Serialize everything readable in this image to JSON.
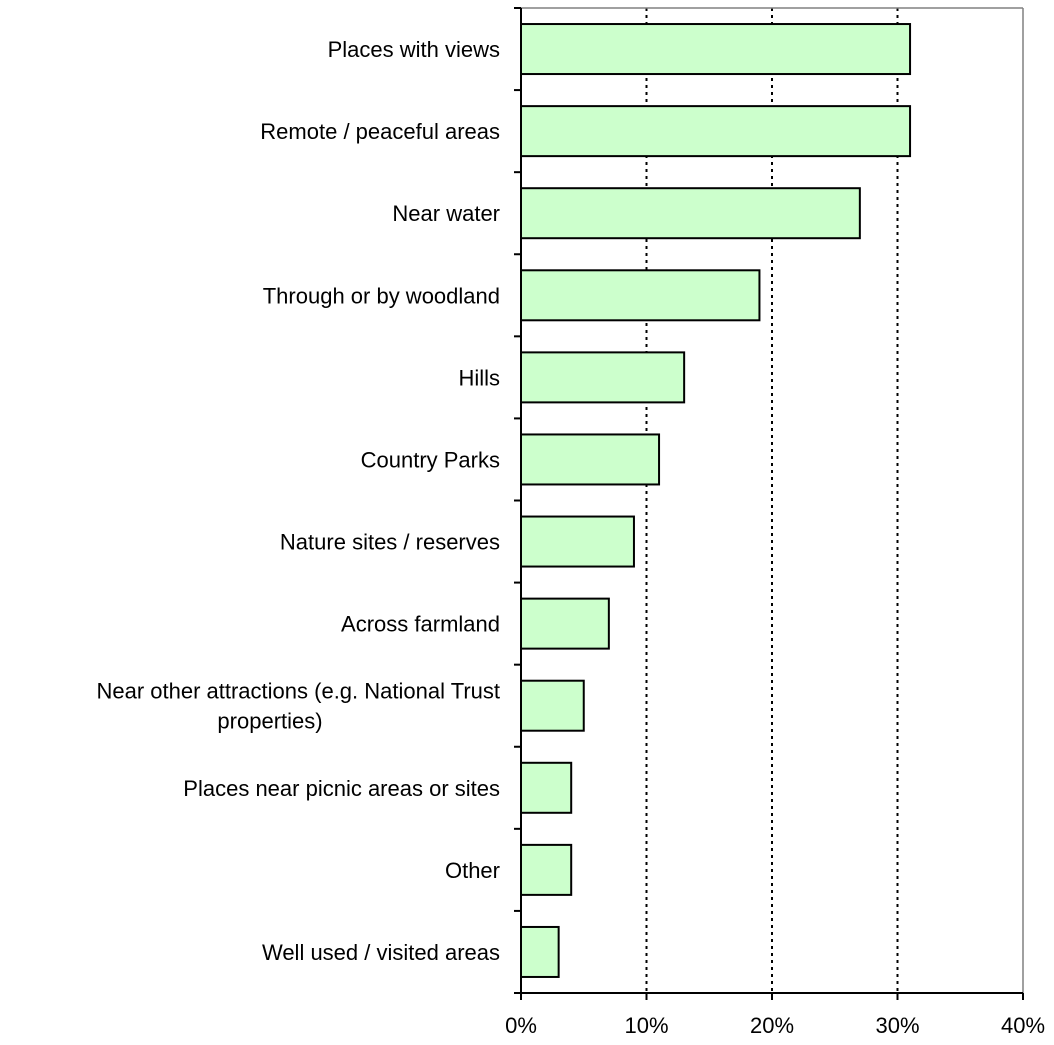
{
  "chart_data": {
    "type": "bar",
    "orientation": "horizontal",
    "title": "",
    "xlabel": "",
    "ylabel": "",
    "categories": [
      "Places with views",
      "Remote / peaceful areas",
      "Near water",
      "Through or by woodland",
      "Hills",
      "Country Parks",
      "Nature sites / reserves",
      "Across farmland",
      "Near other attractions (e.g. National Trust properties)",
      "Places near picnic areas or sites",
      "Other",
      "Well used / visited areas"
    ],
    "category_label_lines": [
      [
        "Places with views"
      ],
      [
        "Remote / peaceful areas"
      ],
      [
        "Near water"
      ],
      [
        "Through or by woodland"
      ],
      [
        "Hills"
      ],
      [
        "Country Parks"
      ],
      [
        "Nature sites / reserves"
      ],
      [
        "Across farmland"
      ],
      [
        "Near other attractions (e.g. National Trust",
        "properties)"
      ],
      [
        "Places near picnic areas or sites"
      ],
      [
        "Other"
      ],
      [
        "Well used / visited areas"
      ]
    ],
    "values": [
      31,
      31,
      27,
      19,
      13,
      11,
      9,
      7,
      5,
      4,
      4,
      3
    ],
    "xlim": [
      0,
      40
    ],
    "ticks": [
      0,
      10,
      20,
      30,
      40
    ],
    "tick_labels": [
      "0%",
      "10%",
      "20%",
      "30%",
      "40%"
    ],
    "grid": "vertical dotted",
    "legend": "none",
    "colors": {
      "bar_fill": "#ccffcc",
      "bar_stroke": "#000000",
      "grid": "#000000",
      "frame": "#808080"
    }
  }
}
